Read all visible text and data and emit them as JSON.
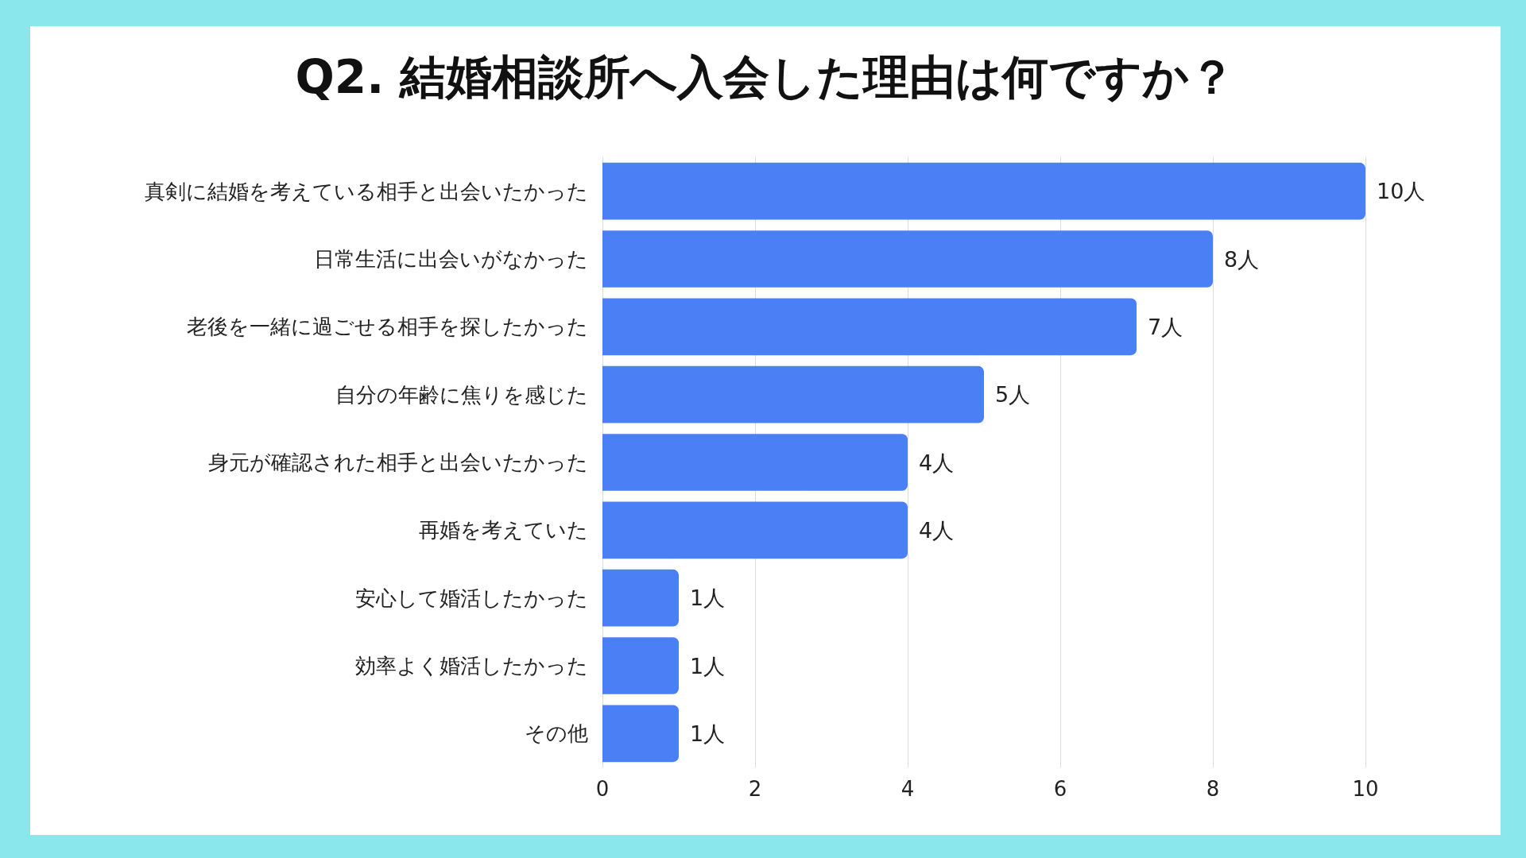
{
  "chart_data": {
    "type": "bar",
    "orientation": "horizontal",
    "title": "Q2. 結婚相談所へ入会した理由は何ですか？",
    "categories": [
      "真剣に結婚を考えている相手と出会いたかった",
      "日常生活に出会いがなかった",
      "老後を一緒に過ごせる相手を探したかった",
      "自分の年齢に焦りを感じた",
      "身元が確認された相手と出会いたかった",
      "再婚を考えていた",
      "安心して婚活したかった",
      "効率よく婚活したかった",
      "その他"
    ],
    "values": [
      10,
      8,
      7,
      5,
      4,
      4,
      1,
      1,
      1
    ],
    "value_labels": [
      "10人",
      "8人",
      "7人",
      "5人",
      "4人",
      "4人",
      "1人",
      "1人",
      "1人"
    ],
    "color": "#4a7ff6",
    "xlim": [
      0,
      10
    ],
    "xticks": [
      0,
      2,
      4,
      6,
      8,
      10
    ],
    "grid": "x"
  }
}
